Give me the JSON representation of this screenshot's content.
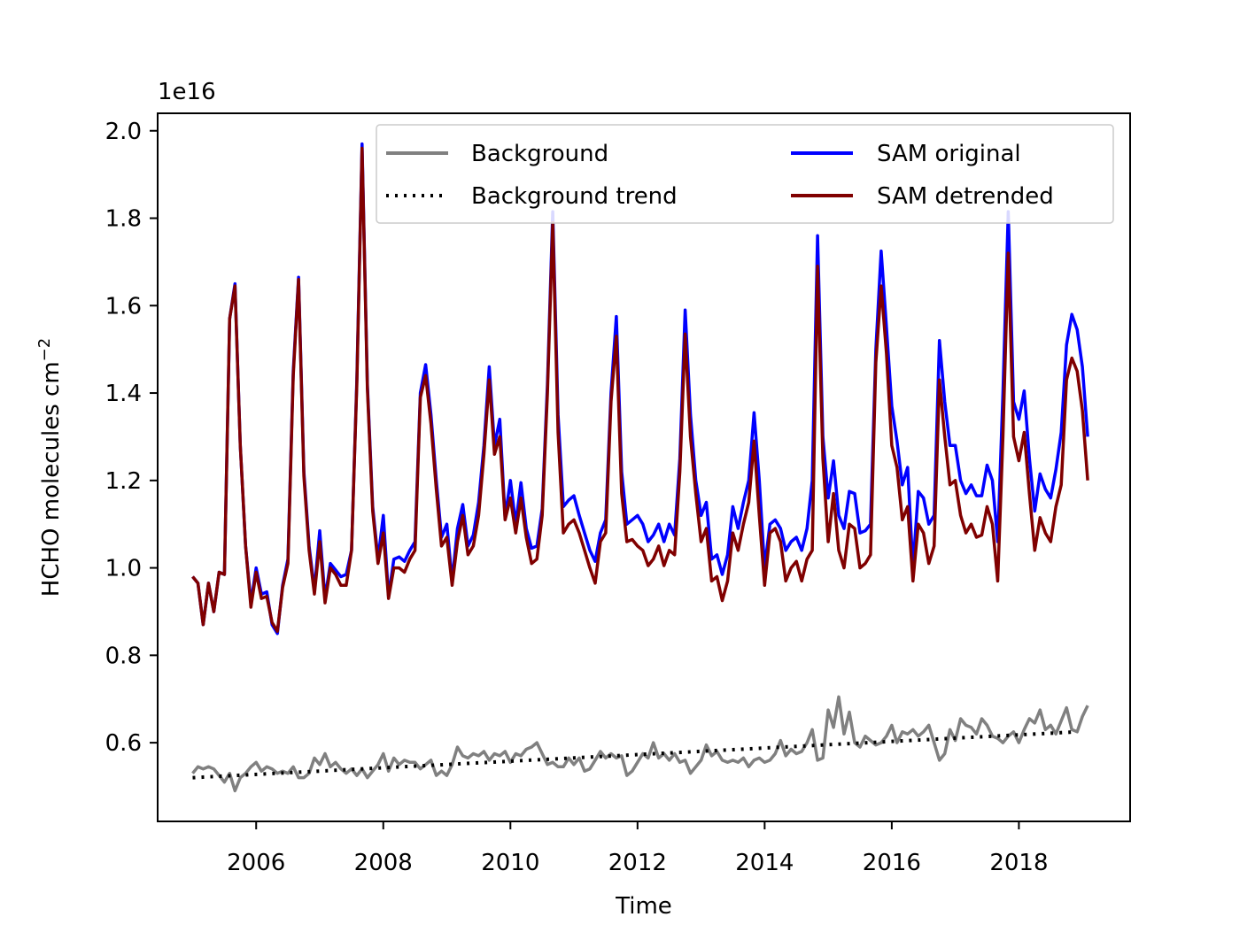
{
  "chart_data": {
    "type": "line",
    "title": "",
    "xlabel": "Time",
    "ylabel_main": "HCHO molecules cm",
    "ylabel_sup": "−2",
    "offset_text": "1e16",
    "scale": 1e+16,
    "xlim": [
      2004.45,
      2019.75
    ],
    "ylim": [
      0.42,
      2.04
    ],
    "xticks": [
      2006,
      2008,
      2010,
      2012,
      2014,
      2016,
      2018
    ],
    "xtick_labels": [
      "2006",
      "2008",
      "2010",
      "2012",
      "2014",
      "2016",
      "2018"
    ],
    "yticks": [
      0.6,
      0.8,
      1.0,
      1.2,
      1.4,
      1.6,
      1.8,
      2.0
    ],
    "ytick_labels": [
      "0.6",
      "0.8",
      "1.0",
      "1.2",
      "1.4",
      "1.6",
      "1.8",
      "2.0"
    ],
    "grid": false,
    "legend_position": "top-right",
    "x_start": 2005.0,
    "x_step": 0.08333,
    "series": [
      {
        "name": "Background",
        "color": "#808080",
        "style": "solid",
        "values": [
          0.53,
          0.545,
          0.54,
          0.545,
          0.54,
          0.525,
          0.51,
          0.53,
          0.49,
          0.52,
          0.53,
          0.545,
          0.555,
          0.535,
          0.545,
          0.54,
          0.53,
          0.535,
          0.53,
          0.545,
          0.52,
          0.52,
          0.53,
          0.565,
          0.55,
          0.575,
          0.545,
          0.555,
          0.54,
          0.53,
          0.54,
          0.525,
          0.54,
          0.52,
          0.535,
          0.55,
          0.575,
          0.535,
          0.565,
          0.55,
          0.56,
          0.555,
          0.555,
          0.54,
          0.55,
          0.56,
          0.525,
          0.535,
          0.525,
          0.55,
          0.59,
          0.57,
          0.565,
          0.575,
          0.57,
          0.58,
          0.56,
          0.575,
          0.57,
          0.58,
          0.555,
          0.575,
          0.57,
          0.585,
          0.59,
          0.6,
          0.575,
          0.55,
          0.555,
          0.545,
          0.545,
          0.565,
          0.55,
          0.565,
          0.535,
          0.54,
          0.56,
          0.58,
          0.565,
          0.575,
          0.565,
          0.57,
          0.525,
          0.535,
          0.555,
          0.575,
          0.565,
          0.6,
          0.565,
          0.575,
          0.56,
          0.575,
          0.555,
          0.56,
          0.53,
          0.545,
          0.56,
          0.595,
          0.57,
          0.58,
          0.56,
          0.555,
          0.56,
          0.555,
          0.565,
          0.545,
          0.56,
          0.565,
          0.555,
          0.56,
          0.575,
          0.605,
          0.57,
          0.585,
          0.575,
          0.58,
          0.6,
          0.63,
          0.56,
          0.565,
          0.675,
          0.635,
          0.705,
          0.62,
          0.67,
          0.6,
          0.59,
          0.615,
          0.605,
          0.595,
          0.6,
          0.615,
          0.64,
          0.6,
          0.625,
          0.62,
          0.63,
          0.615,
          0.625,
          0.64,
          0.6,
          0.56,
          0.575,
          0.63,
          0.605,
          0.655,
          0.64,
          0.635,
          0.62,
          0.655,
          0.64,
          0.615,
          0.61,
          0.6,
          0.615,
          0.625,
          0.6,
          0.63,
          0.655,
          0.645,
          0.675,
          0.63,
          0.64,
          0.62,
          0.65,
          0.68,
          0.63,
          0.625,
          0.66,
          0.685
        ]
      },
      {
        "name": "Background trend",
        "color": "#000000",
        "style": "dotted",
        "values": [
          0.52,
          0.625
        ]
      },
      {
        "name": "SAM original",
        "color": "#0000ff",
        "style": "solid",
        "values": [
          0.98,
          0.965,
          0.87,
          0.965,
          0.9,
          0.99,
          0.985,
          1.57,
          1.65,
          1.28,
          1.05,
          0.92,
          1.0,
          0.94,
          0.945,
          0.87,
          0.85,
          0.96,
          1.02,
          1.45,
          1.665,
          1.22,
          1.05,
          0.95,
          1.085,
          0.93,
          1.01,
          0.995,
          0.98,
          0.985,
          1.04,
          1.43,
          1.97,
          1.42,
          1.14,
          1.02,
          1.12,
          0.935,
          1.02,
          1.025,
          1.015,
          1.04,
          1.06,
          1.4,
          1.465,
          1.35,
          1.2,
          1.07,
          1.1,
          0.97,
          1.09,
          1.145,
          1.05,
          1.075,
          1.15,
          1.28,
          1.46,
          1.28,
          1.34,
          1.115,
          1.2,
          1.1,
          1.195,
          1.09,
          1.045,
          1.05,
          1.135,
          1.42,
          1.815,
          1.35,
          1.14,
          1.155,
          1.165,
          1.12,
          1.08,
          1.04,
          1.015,
          1.08,
          1.11,
          1.4,
          1.575,
          1.22,
          1.1,
          1.11,
          1.12,
          1.1,
          1.06,
          1.075,
          1.1,
          1.06,
          1.1,
          1.075,
          1.25,
          1.59,
          1.35,
          1.2,
          1.12,
          1.15,
          1.02,
          1.03,
          0.985,
          1.03,
          1.14,
          1.09,
          1.15,
          1.2,
          1.355,
          1.2,
          1.0,
          1.1,
          1.11,
          1.09,
          1.04,
          1.06,
          1.07,
          1.04,
          1.09,
          1.2,
          1.76,
          1.3,
          1.16,
          1.245,
          1.12,
          1.09,
          1.175,
          1.17,
          1.08,
          1.085,
          1.1,
          1.5,
          1.725,
          1.55,
          1.37,
          1.29,
          1.19,
          1.23,
          1.0,
          1.175,
          1.16,
          1.1,
          1.12,
          1.52,
          1.38,
          1.28,
          1.28,
          1.2,
          1.17,
          1.19,
          1.165,
          1.165,
          1.235,
          1.2,
          1.06,
          1.4,
          1.815,
          1.38,
          1.34,
          1.405,
          1.25,
          1.13,
          1.215,
          1.18,
          1.16,
          1.225,
          1.31,
          1.51,
          1.58,
          1.545,
          1.46,
          1.3
        ]
      },
      {
        "name": "SAM detrended",
        "color": "#800000",
        "style": "solid",
        "values": [
          0.98,
          0.965,
          0.87,
          0.965,
          0.9,
          0.99,
          0.985,
          1.57,
          1.645,
          1.28,
          1.05,
          0.91,
          0.99,
          0.93,
          0.935,
          0.875,
          0.855,
          0.955,
          1.01,
          1.44,
          1.66,
          1.21,
          1.04,
          0.94,
          1.06,
          0.92,
          1.0,
          0.985,
          0.96,
          0.96,
          1.04,
          1.42,
          1.96,
          1.41,
          1.13,
          1.01,
          1.08,
          0.93,
          1.0,
          1.0,
          0.99,
          1.02,
          1.04,
          1.39,
          1.44,
          1.33,
          1.18,
          1.05,
          1.07,
          0.96,
          1.06,
          1.12,
          1.03,
          1.05,
          1.12,
          1.26,
          1.43,
          1.26,
          1.3,
          1.11,
          1.16,
          1.08,
          1.16,
          1.07,
          1.01,
          1.02,
          1.12,
          1.4,
          1.79,
          1.31,
          1.08,
          1.1,
          1.11,
          1.08,
          1.04,
          1.0,
          0.965,
          1.06,
          1.08,
          1.38,
          1.53,
          1.17,
          1.06,
          1.065,
          1.05,
          1.04,
          1.005,
          1.02,
          1.05,
          1.005,
          1.04,
          1.03,
          1.22,
          1.535,
          1.3,
          1.17,
          1.06,
          1.09,
          0.97,
          0.98,
          0.925,
          0.97,
          1.08,
          1.04,
          1.1,
          1.15,
          1.29,
          1.12,
          0.96,
          1.08,
          1.09,
          1.06,
          0.97,
          1.0,
          1.015,
          0.97,
          1.02,
          1.04,
          1.69,
          1.25,
          1.06,
          1.17,
          1.04,
          1.0,
          1.1,
          1.09,
          1.0,
          1.01,
          1.03,
          1.47,
          1.645,
          1.49,
          1.28,
          1.23,
          1.11,
          1.14,
          0.97,
          1.1,
          1.08,
          1.01,
          1.05,
          1.43,
          1.3,
          1.19,
          1.2,
          1.12,
          1.08,
          1.1,
          1.07,
          1.075,
          1.14,
          1.1,
          0.97,
          1.3,
          1.72,
          1.3,
          1.245,
          1.31,
          1.17,
          1.04,
          1.115,
          1.08,
          1.06,
          1.14,
          1.19,
          1.43,
          1.48,
          1.45,
          1.36,
          1.2
        ]
      }
    ]
  },
  "legend": {
    "items": [
      {
        "label": "Background",
        "color": "#808080",
        "style": "solid"
      },
      {
        "label": "Background trend",
        "color": "#000000",
        "style": "dotted"
      },
      {
        "label": "SAM original",
        "color": "#0000ff",
        "style": "solid"
      },
      {
        "label": "SAM detrended",
        "color": "#800000",
        "style": "solid"
      }
    ]
  }
}
